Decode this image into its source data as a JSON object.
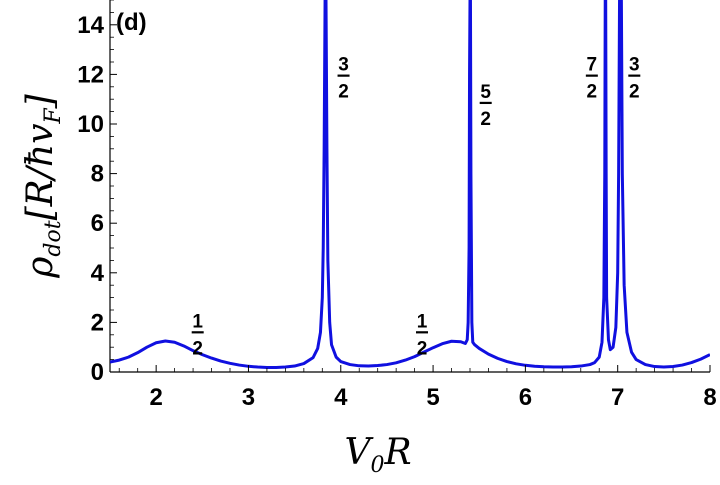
{
  "chart_data": {
    "type": "line",
    "panel_label": "(d)",
    "xlabel": "V0R",
    "ylabel": "ρdot[R/ħvF]",
    "xlim": [
      1.5,
      8
    ],
    "ylim": [
      0,
      15
    ],
    "x_ticks": [
      "2",
      "3",
      "4",
      "5",
      "6",
      "7",
      "8"
    ],
    "y_ticks": [
      "0",
      "2",
      "4",
      "6",
      "8",
      "10",
      "12",
      "14"
    ],
    "series": [
      {
        "color": "#1010e0",
        "points": [
          [
            1.5,
            0.4
          ],
          [
            1.6,
            0.48
          ],
          [
            1.7,
            0.6
          ],
          [
            1.8,
            0.78
          ],
          [
            1.9,
            1.0
          ],
          [
            2.0,
            1.18
          ],
          [
            2.1,
            1.25
          ],
          [
            2.2,
            1.2
          ],
          [
            2.3,
            1.05
          ],
          [
            2.4,
            0.86
          ],
          [
            2.5,
            0.7
          ],
          [
            2.6,
            0.56
          ],
          [
            2.7,
            0.44
          ],
          [
            2.8,
            0.35
          ],
          [
            2.9,
            0.28
          ],
          [
            3.0,
            0.23
          ],
          [
            3.1,
            0.2
          ],
          [
            3.2,
            0.18
          ],
          [
            3.3,
            0.18
          ],
          [
            3.4,
            0.2
          ],
          [
            3.5,
            0.24
          ],
          [
            3.6,
            0.34
          ],
          [
            3.7,
            0.58
          ],
          [
            3.75,
            0.95
          ],
          [
            3.78,
            1.6
          ],
          [
            3.8,
            3.0
          ],
          [
            3.81,
            5.0
          ],
          [
            3.82,
            9.0
          ],
          [
            3.83,
            15
          ],
          [
            3.84,
            15
          ],
          [
            3.85,
            9.0
          ],
          [
            3.86,
            4.5
          ],
          [
            3.88,
            2.0
          ],
          [
            3.9,
            1.1
          ],
          [
            3.95,
            0.6
          ],
          [
            4.0,
            0.42
          ],
          [
            4.1,
            0.3
          ],
          [
            4.2,
            0.25
          ],
          [
            4.3,
            0.24
          ],
          [
            4.4,
            0.26
          ],
          [
            4.5,
            0.3
          ],
          [
            4.6,
            0.37
          ],
          [
            4.7,
            0.48
          ],
          [
            4.8,
            0.62
          ],
          [
            4.9,
            0.8
          ],
          [
            5.0,
            0.98
          ],
          [
            5.1,
            1.14
          ],
          [
            5.2,
            1.24
          ],
          [
            5.3,
            1.22
          ],
          [
            5.35,
            1.15
          ],
          [
            5.37,
            1.3
          ],
          [
            5.38,
            2.0
          ],
          [
            5.39,
            5.0
          ],
          [
            5.395,
            12.0
          ],
          [
            5.4,
            15
          ],
          [
            5.405,
            15
          ],
          [
            5.41,
            8.0
          ],
          [
            5.42,
            2.0
          ],
          [
            5.43,
            1.2
          ],
          [
            5.45,
            1.1
          ],
          [
            5.5,
            0.95
          ],
          [
            5.6,
            0.72
          ],
          [
            5.7,
            0.55
          ],
          [
            5.8,
            0.42
          ],
          [
            5.9,
            0.33
          ],
          [
            6.0,
            0.27
          ],
          [
            6.1,
            0.23
          ],
          [
            6.2,
            0.21
          ],
          [
            6.3,
            0.2
          ],
          [
            6.4,
            0.2
          ],
          [
            6.5,
            0.21
          ],
          [
            6.6,
            0.24
          ],
          [
            6.7,
            0.3
          ],
          [
            6.75,
            0.38
          ],
          [
            6.8,
            0.6
          ],
          [
            6.83,
            1.2
          ],
          [
            6.85,
            3.0
          ],
          [
            6.86,
            8.0
          ],
          [
            6.865,
            15
          ],
          [
            6.87,
            15
          ],
          [
            6.875,
            8.0
          ],
          [
            6.88,
            3.0
          ],
          [
            6.9,
            1.3
          ],
          [
            6.92,
            0.9
          ],
          [
            6.95,
            1.0
          ],
          [
            6.98,
            1.8
          ],
          [
            7.0,
            4.0
          ],
          [
            7.01,
            8.0
          ],
          [
            7.02,
            15
          ],
          [
            7.04,
            15
          ],
          [
            7.05,
            8.0
          ],
          [
            7.07,
            3.5
          ],
          [
            7.1,
            1.6
          ],
          [
            7.15,
            0.8
          ],
          [
            7.2,
            0.5
          ],
          [
            7.3,
            0.3
          ],
          [
            7.4,
            0.22
          ],
          [
            7.5,
            0.2
          ],
          [
            7.6,
            0.22
          ],
          [
            7.7,
            0.28
          ],
          [
            7.8,
            0.38
          ],
          [
            7.9,
            0.52
          ],
          [
            8.0,
            0.7
          ]
        ]
      }
    ],
    "annotations": [
      {
        "num": "1",
        "den": "2",
        "x": 2.45,
        "y": 1.6
      },
      {
        "num": "3",
        "den": "2",
        "x": 4.03,
        "y": 11.95
      },
      {
        "num": "1",
        "den": "2",
        "x": 4.88,
        "y": 1.6
      },
      {
        "num": "5",
        "den": "2",
        "x": 5.57,
        "y": 10.85
      },
      {
        "num": "7",
        "den": "2",
        "x": 6.72,
        "y": 11.95
      },
      {
        "num": "3",
        "den": "2",
        "x": 7.18,
        "y": 11.95
      }
    ]
  }
}
